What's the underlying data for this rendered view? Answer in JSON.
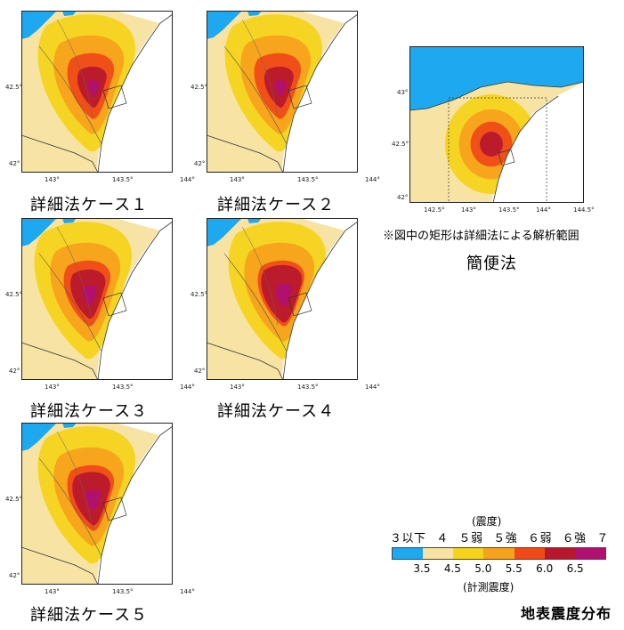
{
  "panels": [
    {
      "caption": "詳細法ケース１",
      "lat_ticks": [
        "42.5°",
        "42°"
      ],
      "lon_ticks": [
        "143°",
        "143.5°",
        "144°"
      ]
    },
    {
      "caption": "詳細法ケース２",
      "lat_ticks": [
        "42.5°",
        "42°"
      ],
      "lon_ticks": [
        "143°",
        "143.5°",
        "144°"
      ]
    },
    {
      "caption": "詳細法ケース３",
      "lat_ticks": [
        "42.5°",
        "42°"
      ],
      "lon_ticks": [
        "143°",
        "143.5°",
        "144°"
      ]
    },
    {
      "caption": "詳細法ケース４",
      "lat_ticks": [
        "42.5°",
        "42°"
      ],
      "lon_ticks": [
        "143°",
        "143.5°",
        "144°"
      ]
    },
    {
      "caption": "詳細法ケース５",
      "lat_ticks": [
        "42.5°",
        "42°"
      ],
      "lon_ticks": [
        "143°",
        "143.5°",
        "144°"
      ]
    }
  ],
  "simple_map": {
    "caption": "簡便法",
    "note": "※図中の矩形は詳細法による解析範囲",
    "lat_ticks": [
      "43°",
      "42.5°",
      "42°"
    ],
    "lon_ticks": [
      "142.5°",
      "143°",
      "143.5°",
      "144°",
      "144.5°"
    ]
  },
  "legend": {
    "title": "地表震度分布",
    "scale_label": "(震度)",
    "measure_label": "(計測震度)",
    "intensity_classes": [
      "３以下",
      "４",
      "５弱",
      "５強",
      "６弱",
      "６強",
      "７"
    ],
    "thresholds": [
      "3.5",
      "4.5",
      "5.0",
      "5.5",
      "6.0",
      "6.5"
    ],
    "colors": [
      "#1ea8f0",
      "#f7e3a3",
      "#f5d31c",
      "#f7a21c",
      "#f04a18",
      "#b8182c",
      "#b01070"
    ]
  }
}
